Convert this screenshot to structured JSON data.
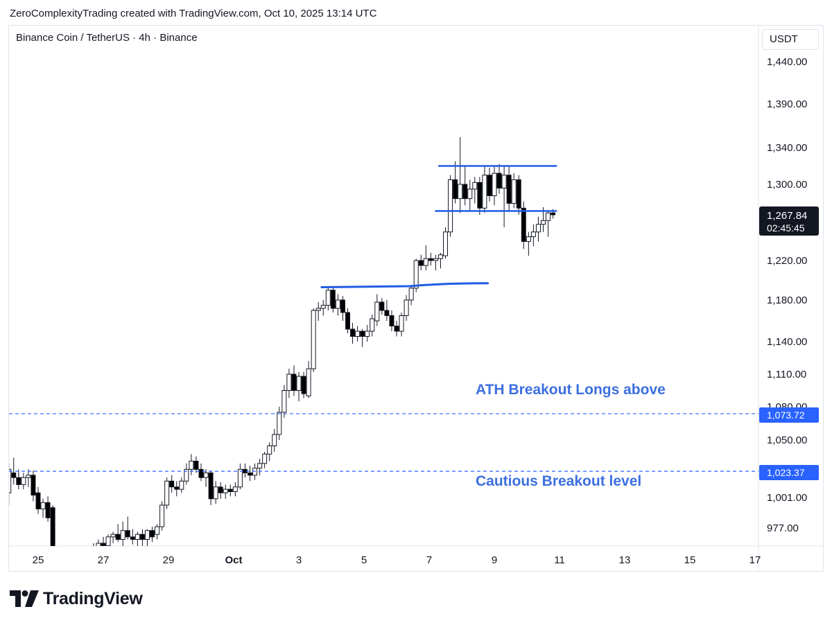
{
  "header": {
    "attribution": "ZeroComplexityTrading created with TradingView.com, Oct 10, 2025 13:14 UTC"
  },
  "symbol": {
    "title": "Binance Coin / TetherUS · 4h · Binance"
  },
  "currency": "USDT",
  "branding": {
    "logo_text": "TradingView"
  },
  "colors": {
    "accent": "#2962ff",
    "annotation": "#3c6fe0",
    "candle_up": "#ffffff",
    "candle_down": "#000000",
    "wick": "#131722"
  },
  "chart_data": {
    "type": "candlestick",
    "title": "Binance Coin / TetherUS · 4h · Binance",
    "yaxis": {
      "ticks": [
        "1,440.00",
        "1,390.00",
        "1,340.00",
        "1,300.00",
        "1,220.00",
        "1,180.00",
        "1,140.00",
        "1,110.00",
        "1,080.00",
        "1,050.00",
        "1,001.00",
        "977.00"
      ],
      "tick_values": [
        1440,
        1390,
        1340,
        1300,
        1220,
        1180,
        1140,
        1110,
        1080,
        1050,
        1001,
        977
      ]
    },
    "xaxis": {
      "ticks": [
        "25",
        "27",
        "29",
        "Oct",
        "3",
        "5",
        "7",
        "9",
        "11",
        "13",
        "15",
        "17"
      ],
      "tick_days": [
        -6,
        -4,
        -2,
        0,
        2,
        4,
        6,
        8,
        10,
        12,
        14,
        16
      ]
    },
    "current_price": {
      "label": "1,267.84",
      "countdown": "02:45:45",
      "value": 1267.84
    },
    "levels": [
      {
        "value": 1073.72,
        "label": "1,073.72",
        "style": "dashed"
      },
      {
        "value": 1023.37,
        "label": "1,023.37",
        "style": "dashed"
      }
    ],
    "annotations": [
      {
        "text": "ATH Breakout Longs above"
      },
      {
        "text": "Cautious Breakout level"
      }
    ],
    "drawn_lines": [
      {
        "name": "prior-high-line",
        "from": [
          2.7,
          1193
        ],
        "to": [
          7.8,
          1197
        ]
      },
      {
        "name": "range-high-line",
        "from": [
          6.3,
          1320
        ],
        "to": [
          9.9,
          1320
        ]
      },
      {
        "name": "range-low-line",
        "from": [
          6.2,
          1272
        ],
        "to": [
          9.9,
          1272
        ]
      }
    ],
    "candles": [
      {
        "d": -6.9,
        "o": 1005,
        "h": 1030,
        "l": 995,
        "c": 1025
      },
      {
        "d": -6.75,
        "o": 1022,
        "h": 1035,
        "l": 1012,
        "c": 1018
      },
      {
        "d": -6.6,
        "o": 1018,
        "h": 1025,
        "l": 1008,
        "c": 1012
      },
      {
        "d": -6.45,
        "o": 1012,
        "h": 1022,
        "l": 1008,
        "c": 1018
      },
      {
        "d": -6.3,
        "o": 1018,
        "h": 1025,
        "l": 1010,
        "c": 1020
      },
      {
        "d": -6.15,
        "o": 1020,
        "h": 1024,
        "l": 998,
        "c": 1003
      },
      {
        "d": -6.0,
        "o": 1005,
        "h": 1010,
        "l": 988,
        "c": 992
      },
      {
        "d": -5.85,
        "o": 992,
        "h": 1000,
        "l": 985,
        "c": 997
      },
      {
        "d": -5.7,
        "o": 997,
        "h": 1002,
        "l": 982,
        "c": 985
      },
      {
        "d": -5.55,
        "o": 993,
        "h": 995,
        "l": 955,
        "c": 962
      },
      {
        "d": -4.3,
        "o": 958,
        "h": 965,
        "l": 955,
        "c": 962
      },
      {
        "d": -4.15,
        "o": 962,
        "h": 968,
        "l": 958,
        "c": 965
      },
      {
        "d": -4.0,
        "o": 965,
        "h": 970,
        "l": 960,
        "c": 963
      },
      {
        "d": -3.85,
        "o": 963,
        "h": 972,
        "l": 960,
        "c": 970
      },
      {
        "d": -3.7,
        "o": 970,
        "h": 974,
        "l": 965,
        "c": 972
      },
      {
        "d": -3.55,
        "o": 972,
        "h": 980,
        "l": 966,
        "c": 968
      },
      {
        "d": -3.4,
        "o": 968,
        "h": 982,
        "l": 962,
        "c": 975
      },
      {
        "d": -3.25,
        "o": 975,
        "h": 986,
        "l": 968,
        "c": 970
      },
      {
        "d": -3.1,
        "o": 970,
        "h": 976,
        "l": 964,
        "c": 968
      },
      {
        "d": -2.95,
        "o": 968,
        "h": 974,
        "l": 960,
        "c": 972
      },
      {
        "d": -2.8,
        "o": 972,
        "h": 976,
        "l": 962,
        "c": 968
      },
      {
        "d": -2.65,
        "o": 968,
        "h": 976,
        "l": 960,
        "c": 975
      },
      {
        "d": -2.5,
        "o": 975,
        "h": 978,
        "l": 966,
        "c": 970
      },
      {
        "d": -2.35,
        "o": 972,
        "h": 980,
        "l": 968,
        "c": 978
      },
      {
        "d": -2.2,
        "o": 978,
        "h": 998,
        "l": 975,
        "c": 995
      },
      {
        "d": -2.05,
        "o": 995,
        "h": 1018,
        "l": 992,
        "c": 1015
      },
      {
        "d": -1.9,
        "o": 1015,
        "h": 1020,
        "l": 1005,
        "c": 1010
      },
      {
        "d": -1.75,
        "o": 1010,
        "h": 1015,
        "l": 1002,
        "c": 1008
      },
      {
        "d": -1.6,
        "o": 1008,
        "h": 1018,
        "l": 1005,
        "c": 1015
      },
      {
        "d": -1.45,
        "o": 1015,
        "h": 1030,
        "l": 1012,
        "c": 1025
      },
      {
        "d": -1.3,
        "o": 1025,
        "h": 1038,
        "l": 1020,
        "c": 1032
      },
      {
        "d": -1.15,
        "o": 1032,
        "h": 1036,
        "l": 1022,
        "c": 1025
      },
      {
        "d": -1.0,
        "o": 1025,
        "h": 1030,
        "l": 1015,
        "c": 1018
      },
      {
        "d": -0.85,
        "o": 1018,
        "h": 1025,
        "l": 1010,
        "c": 1022
      },
      {
        "d": -0.7,
        "o": 1022,
        "h": 1024,
        "l": 995,
        "c": 1000
      },
      {
        "d": -0.55,
        "o": 1000,
        "h": 1015,
        "l": 996,
        "c": 1010
      },
      {
        "d": -0.4,
        "o": 1010,
        "h": 1014,
        "l": 1000,
        "c": 1005
      },
      {
        "d": -0.25,
        "o": 1005,
        "h": 1012,
        "l": 1000,
        "c": 1008
      },
      {
        "d": -0.1,
        "o": 1008,
        "h": 1012,
        "l": 1002,
        "c": 1006
      },
      {
        "d": 0.05,
        "o": 1006,
        "h": 1014,
        "l": 1002,
        "c": 1010
      },
      {
        "d": 0.2,
        "o": 1010,
        "h": 1030,
        "l": 1008,
        "c": 1025
      },
      {
        "d": 0.35,
        "o": 1025,
        "h": 1030,
        "l": 1018,
        "c": 1022
      },
      {
        "d": 0.5,
        "o": 1022,
        "h": 1028,
        "l": 1015,
        "c": 1020
      },
      {
        "d": 0.65,
        "o": 1020,
        "h": 1030,
        "l": 1016,
        "c": 1026
      },
      {
        "d": 0.8,
        "o": 1026,
        "h": 1034,
        "l": 1020,
        "c": 1030
      },
      {
        "d": 0.95,
        "o": 1030,
        "h": 1040,
        "l": 1026,
        "c": 1038
      },
      {
        "d": 1.1,
        "o": 1038,
        "h": 1048,
        "l": 1032,
        "c": 1045
      },
      {
        "d": 1.25,
        "o": 1045,
        "h": 1060,
        "l": 1040,
        "c": 1055
      },
      {
        "d": 1.4,
        "o": 1055,
        "h": 1080,
        "l": 1050,
        "c": 1075
      },
      {
        "d": 1.55,
        "o": 1075,
        "h": 1100,
        "l": 1070,
        "c": 1095
      },
      {
        "d": 1.7,
        "o": 1095,
        "h": 1115,
        "l": 1088,
        "c": 1110
      },
      {
        "d": 1.85,
        "o": 1110,
        "h": 1118,
        "l": 1090,
        "c": 1095
      },
      {
        "d": 2.0,
        "o": 1095,
        "h": 1112,
        "l": 1085,
        "c": 1108
      },
      {
        "d": 2.15,
        "o": 1108,
        "h": 1112,
        "l": 1088,
        "c": 1092
      },
      {
        "d": 2.3,
        "o": 1090,
        "h": 1122,
        "l": 1088,
        "c": 1115
      },
      {
        "d": 2.45,
        "o": 1115,
        "h": 1172,
        "l": 1112,
        "c": 1170
      },
      {
        "d": 2.6,
        "o": 1170,
        "h": 1178,
        "l": 1160,
        "c": 1172
      },
      {
        "d": 2.75,
        "o": 1172,
        "h": 1180,
        "l": 1165,
        "c": 1175
      },
      {
        "d": 2.9,
        "o": 1175,
        "h": 1192,
        "l": 1170,
        "c": 1190
      },
      {
        "d": 3.05,
        "o": 1190,
        "h": 1192,
        "l": 1168,
        "c": 1172
      },
      {
        "d": 3.2,
        "o": 1172,
        "h": 1186,
        "l": 1165,
        "c": 1180
      },
      {
        "d": 3.35,
        "o": 1180,
        "h": 1184,
        "l": 1160,
        "c": 1168
      },
      {
        "d": 3.5,
        "o": 1168,
        "h": 1172,
        "l": 1148,
        "c": 1152
      },
      {
        "d": 3.65,
        "o": 1152,
        "h": 1158,
        "l": 1138,
        "c": 1145
      },
      {
        "d": 3.8,
        "o": 1145,
        "h": 1155,
        "l": 1140,
        "c": 1150
      },
      {
        "d": 3.95,
        "o": 1150,
        "h": 1152,
        "l": 1135,
        "c": 1145
      },
      {
        "d": 4.1,
        "o": 1145,
        "h": 1156,
        "l": 1140,
        "c": 1150
      },
      {
        "d": 4.25,
        "o": 1150,
        "h": 1166,
        "l": 1145,
        "c": 1162
      },
      {
        "d": 4.4,
        "o": 1160,
        "h": 1186,
        "l": 1155,
        "c": 1178
      },
      {
        "d": 4.55,
        "o": 1178,
        "h": 1182,
        "l": 1166,
        "c": 1170
      },
      {
        "d": 4.7,
        "o": 1170,
        "h": 1180,
        "l": 1160,
        "c": 1165
      },
      {
        "d": 4.85,
        "o": 1165,
        "h": 1170,
        "l": 1150,
        "c": 1155
      },
      {
        "d": 5.0,
        "o": 1155,
        "h": 1160,
        "l": 1145,
        "c": 1150
      },
      {
        "d": 5.15,
        "o": 1150,
        "h": 1168,
        "l": 1145,
        "c": 1165
      },
      {
        "d": 5.3,
        "o": 1165,
        "h": 1185,
        "l": 1160,
        "c": 1180
      },
      {
        "d": 5.45,
        "o": 1180,
        "h": 1195,
        "l": 1175,
        "c": 1192
      },
      {
        "d": 5.6,
        "o": 1192,
        "h": 1222,
        "l": 1188,
        "c": 1220
      },
      {
        "d": 5.75,
        "o": 1220,
        "h": 1226,
        "l": 1210,
        "c": 1215
      },
      {
        "d": 5.9,
        "o": 1215,
        "h": 1236,
        "l": 1210,
        "c": 1222
      },
      {
        "d": 6.05,
        "o": 1222,
        "h": 1228,
        "l": 1215,
        "c": 1220
      },
      {
        "d": 6.2,
        "o": 1220,
        "h": 1226,
        "l": 1210,
        "c": 1222
      },
      {
        "d": 6.35,
        "o": 1222,
        "h": 1228,
        "l": 1212,
        "c": 1226
      },
      {
        "d": 6.5,
        "o": 1225,
        "h": 1255,
        "l": 1222,
        "c": 1250
      },
      {
        "d": 6.65,
        "o": 1250,
        "h": 1310,
        "l": 1245,
        "c": 1305
      },
      {
        "d": 6.8,
        "o": 1305,
        "h": 1325,
        "l": 1280,
        "c": 1285
      },
      {
        "d": 6.95,
        "o": 1285,
        "h": 1352,
        "l": 1270,
        "c": 1300
      },
      {
        "d": 7.1,
        "o": 1300,
        "h": 1320,
        "l": 1278,
        "c": 1285
      },
      {
        "d": 7.25,
        "o": 1285,
        "h": 1305,
        "l": 1272,
        "c": 1295
      },
      {
        "d": 7.4,
        "o": 1295,
        "h": 1308,
        "l": 1280,
        "c": 1302
      },
      {
        "d": 7.55,
        "o": 1302,
        "h": 1308,
        "l": 1268,
        "c": 1275
      },
      {
        "d": 7.7,
        "o": 1275,
        "h": 1320,
        "l": 1270,
        "c": 1310
      },
      {
        "d": 7.85,
        "o": 1310,
        "h": 1318,
        "l": 1282,
        "c": 1288
      },
      {
        "d": 8.0,
        "o": 1288,
        "h": 1320,
        "l": 1278,
        "c": 1312
      },
      {
        "d": 8.15,
        "o": 1312,
        "h": 1322,
        "l": 1290,
        "c": 1296
      },
      {
        "d": 8.3,
        "o": 1296,
        "h": 1320,
        "l": 1255,
        "c": 1310
      },
      {
        "d": 8.45,
        "o": 1310,
        "h": 1320,
        "l": 1272,
        "c": 1280
      },
      {
        "d": 8.6,
        "o": 1280,
        "h": 1312,
        "l": 1275,
        "c": 1305
      },
      {
        "d": 8.75,
        "o": 1305,
        "h": 1310,
        "l": 1268,
        "c": 1275
      },
      {
        "d": 8.9,
        "o": 1275,
        "h": 1282,
        "l": 1232,
        "c": 1240
      },
      {
        "d": 9.05,
        "o": 1240,
        "h": 1250,
        "l": 1225,
        "c": 1245
      },
      {
        "d": 9.2,
        "o": 1245,
        "h": 1258,
        "l": 1235,
        "c": 1250
      },
      {
        "d": 9.35,
        "o": 1250,
        "h": 1266,
        "l": 1240,
        "c": 1258
      },
      {
        "d": 9.5,
        "o": 1258,
        "h": 1276,
        "l": 1250,
        "c": 1262
      },
      {
        "d": 9.65,
        "o": 1262,
        "h": 1272,
        "l": 1245,
        "c": 1270
      },
      {
        "d": 9.8,
        "o": 1270,
        "h": 1274,
        "l": 1264,
        "c": 1268
      }
    ]
  }
}
